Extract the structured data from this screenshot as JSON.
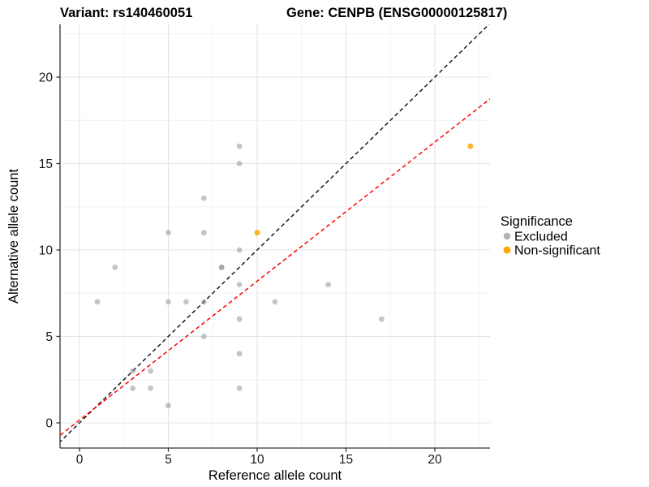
{
  "titles": {
    "left": "Variant: rs140460051",
    "right": "Gene: CENPB (ENSG00000125817)"
  },
  "chart_data": {
    "type": "scatter",
    "xlabel": "Reference allele count",
    "ylabel": "Alternative allele count",
    "xlim": [
      -1.1,
      23.1
    ],
    "ylim": [
      -1.5,
      23.1
    ],
    "xticks": [
      0,
      5,
      10,
      15,
      20
    ],
    "yticks": [
      0,
      5,
      10,
      15,
      20
    ],
    "minor_ticks": [
      2.5,
      7.5,
      12.5,
      17.5,
      22.5
    ],
    "grid": "major+minor",
    "legend_position": "right",
    "legend_title": "Significance",
    "series": [
      {
        "name": "Excluded",
        "color": "#8c8c8c",
        "legend_color": "#b3b3b3",
        "opacity": 0.5,
        "points": [
          [
            1,
            7
          ],
          [
            2,
            9
          ],
          [
            3,
            2
          ],
          [
            3,
            3
          ],
          [
            4,
            2
          ],
          [
            4,
            3
          ],
          [
            5,
            1
          ],
          [
            5,
            7
          ],
          [
            5,
            11
          ],
          [
            6,
            7
          ],
          [
            7,
            5
          ],
          [
            7,
            7
          ],
          [
            7,
            11
          ],
          [
            7,
            13
          ],
          [
            8,
            9
          ],
          [
            8,
            9
          ],
          [
            9,
            2
          ],
          [
            9,
            4
          ],
          [
            9,
            6
          ],
          [
            9,
            8
          ],
          [
            9,
            10
          ],
          [
            9,
            15
          ],
          [
            9,
            16
          ],
          [
            11,
            7
          ],
          [
            14,
            8
          ],
          [
            17,
            6
          ]
        ]
      },
      {
        "name": "Non-significant",
        "color": "#FFA500",
        "legend_color": "#FFA500",
        "opacity": 0.85,
        "points": [
          [
            10,
            11
          ],
          [
            22,
            16
          ]
        ]
      }
    ],
    "lines": [
      {
        "name": "identity",
        "color": "#1a1a1a",
        "style": "dashed",
        "slope": 1,
        "intercept": 0
      },
      {
        "name": "fit",
        "color": "#ff0000",
        "style": "dashed",
        "slope": 0.804,
        "intercept": 0.16
      }
    ]
  },
  "style_colors": {
    "major_grid": "#e4e4e4",
    "minor_grid": "#f2f2f2",
    "axis_line": "#333333"
  }
}
